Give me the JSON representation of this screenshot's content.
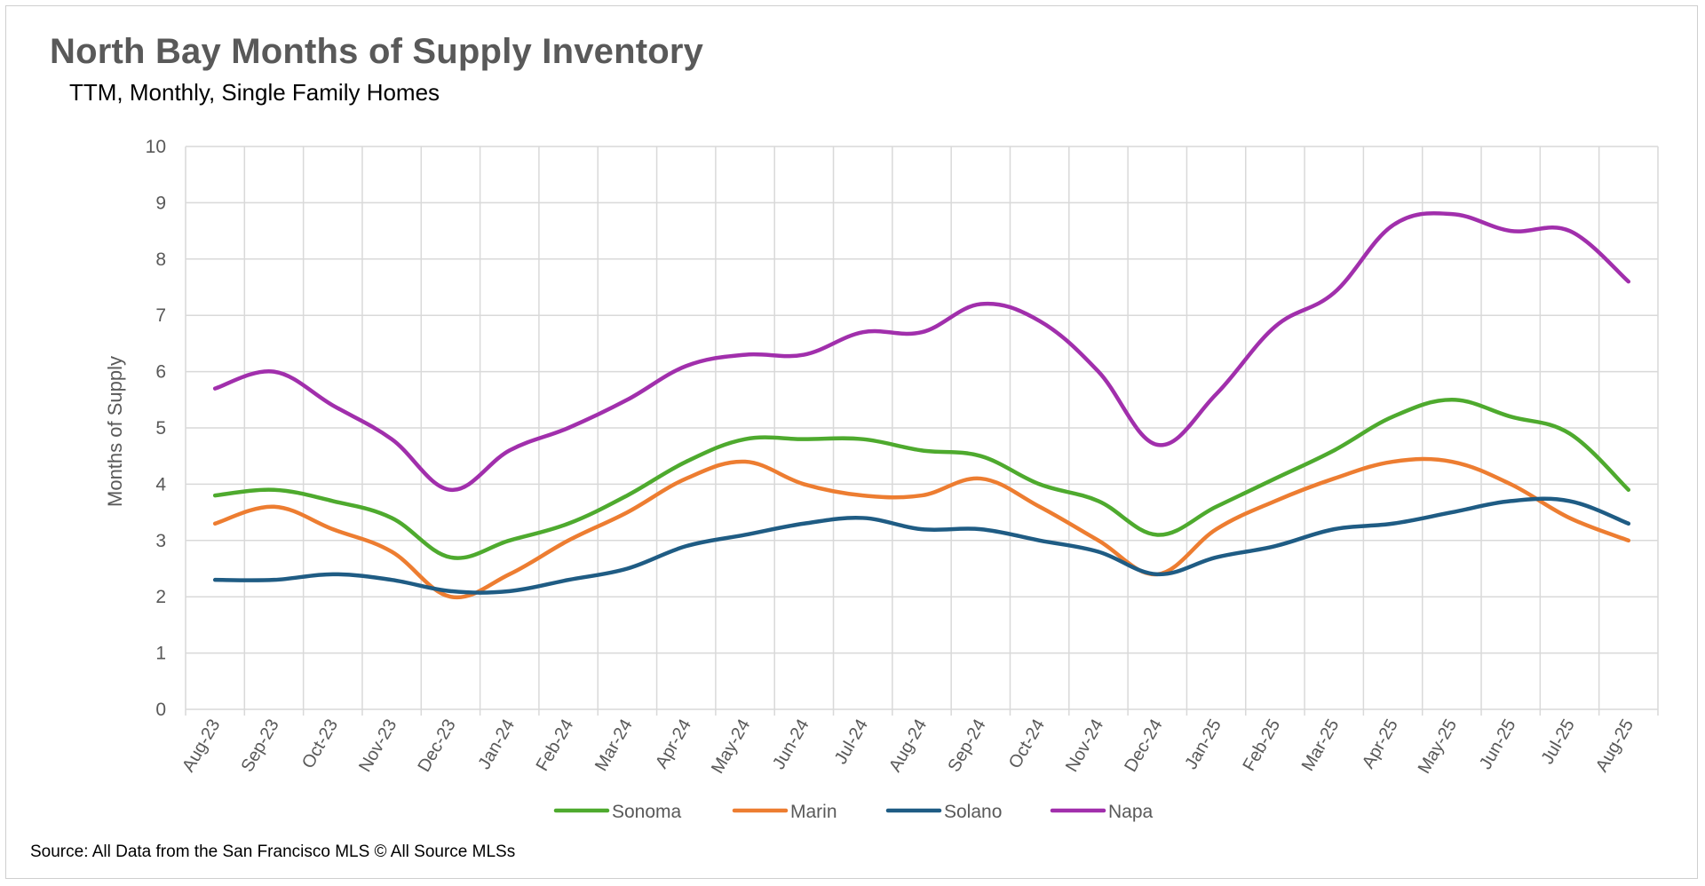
{
  "chart_data": {
    "type": "line",
    "title": "North Bay Months of Supply Inventory",
    "subtitle": "TTM, Monthly, Single Family Homes",
    "xlabel": "",
    "ylabel": "Months of Supply",
    "ylim": [
      0,
      10
    ],
    "yticks": [
      "0",
      "1",
      "2",
      "3",
      "4",
      "5",
      "6",
      "7",
      "8",
      "9",
      "10"
    ],
    "grid": true,
    "legend_position": "bottom",
    "categories": [
      "Aug-23",
      "Sep-23",
      "Oct-23",
      "Nov-23",
      "Dec-23",
      "Jan-24",
      "Feb-24",
      "Mar-24",
      "Apr-24",
      "May-24",
      "Jun-24",
      "Jul-24",
      "Aug-24",
      "Sep-24",
      "Oct-24",
      "Nov-24",
      "Dec-24",
      "Jan-25",
      "Feb-25",
      "Mar-25",
      "Apr-25",
      "May-25",
      "Jun-25",
      "Jul-25",
      "Aug-25"
    ],
    "series": [
      {
        "name": "Sonoma",
        "color": "#4eaa2e",
        "values": [
          3.8,
          3.9,
          3.7,
          3.4,
          2.7,
          3.0,
          3.3,
          3.8,
          4.4,
          4.8,
          4.8,
          4.8,
          4.6,
          4.5,
          4.0,
          3.7,
          3.1,
          3.6,
          4.1,
          4.6,
          5.2,
          5.5,
          5.2,
          4.9,
          3.9
        ]
      },
      {
        "name": "Marin",
        "color": "#ed7d31",
        "values": [
          3.3,
          3.6,
          3.2,
          2.8,
          2.0,
          2.4,
          3.0,
          3.5,
          4.1,
          4.4,
          4.0,
          3.8,
          3.8,
          4.1,
          3.6,
          3.0,
          2.4,
          3.2,
          3.7,
          4.1,
          4.4,
          4.4,
          4.0,
          3.4,
          3.0
        ]
      },
      {
        "name": "Solano",
        "color": "#1f5c84",
        "values": [
          2.3,
          2.3,
          2.4,
          2.3,
          2.1,
          2.1,
          2.3,
          2.5,
          2.9,
          3.1,
          3.3,
          3.4,
          3.2,
          3.2,
          3.0,
          2.8,
          2.4,
          2.7,
          2.9,
          3.2,
          3.3,
          3.5,
          3.7,
          3.7,
          3.3
        ]
      },
      {
        "name": "Napa",
        "color": "#a12fac",
        "values": [
          5.7,
          6.0,
          5.4,
          4.8,
          3.9,
          4.6,
          5.0,
          5.5,
          6.1,
          6.3,
          6.3,
          6.7,
          6.7,
          7.2,
          6.9,
          6.0,
          4.7,
          5.6,
          6.8,
          7.4,
          8.6,
          8.8,
          8.5,
          8.5,
          7.6
        ]
      }
    ]
  },
  "source": "Source: All Data from the San Francisco MLS © All Source MLSs"
}
